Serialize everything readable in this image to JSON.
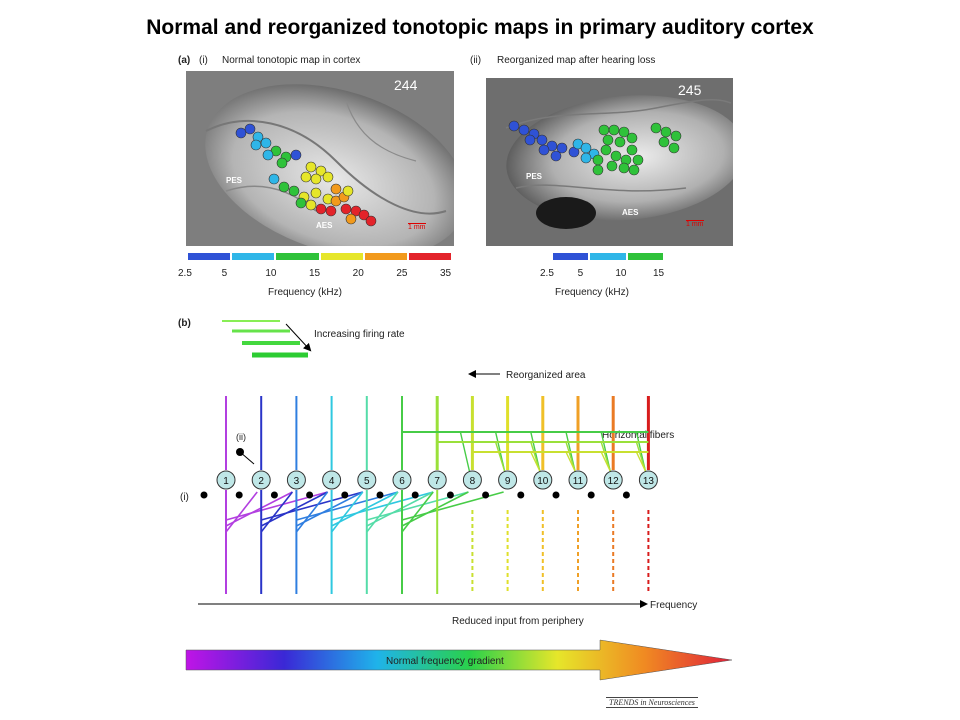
{
  "title": "Normal and reorganized tonotopic maps in primary auditory cortex",
  "panel_a": {
    "label": "(a)",
    "sub_i": "(i)",
    "sub_ii": "(ii)",
    "caption_i": "Normal tonotopic map in cortex",
    "caption_ii": "Reorganized map after hearing loss",
    "photo_i_number": "244",
    "photo_ii_number": "245",
    "pes": "PES",
    "aes": "AES",
    "scale_label": "1 mm",
    "colorbar_i": {
      "colors": [
        "#2f52d6",
        "#2fb6e8",
        "#2fc23a",
        "#e6e62a",
        "#f29a1c",
        "#e3232a"
      ],
      "ticks": [
        "2.5",
        "5",
        "10",
        "15",
        "20",
        "25",
        "35"
      ],
      "label": "Frequency (kHz)"
    },
    "colorbar_ii": {
      "colors": [
        "#2f52d6",
        "#2fb6e8",
        "#2fc23a"
      ],
      "ticks": [
        "2.5",
        "5",
        "10",
        "15"
      ],
      "label": "Frequency (kHz)"
    }
  },
  "panel_b": {
    "label": "(b)",
    "firing_rate_label": "Increasing firing rate",
    "reorganized_area_label": "Reorganized area",
    "horizontal_fibers_label": "Horizontal fibers",
    "sub_i": "(i)",
    "sub_ii": "(ii)",
    "neuron_labels": [
      "1",
      "2",
      "3",
      "4",
      "5",
      "6",
      "7",
      "8",
      "9",
      "10",
      "11",
      "12",
      "13"
    ],
    "column_colors": [
      "#b23fe0",
      "#2a34c8",
      "#2f7ee0",
      "#2fc8e0",
      "#55dca8",
      "#47cc47",
      "#9ae03a",
      "#c8e030",
      "#e0e02a",
      "#f0c028",
      "#f0a026",
      "#ea7a24",
      "#d81c1c"
    ],
    "frequency_label": "Frequency",
    "reduced_input_label": "Reduced input from periphery",
    "gradient_label": "Normal frequency gradient"
  },
  "credit": "TRENDS in Neurosciences"
}
